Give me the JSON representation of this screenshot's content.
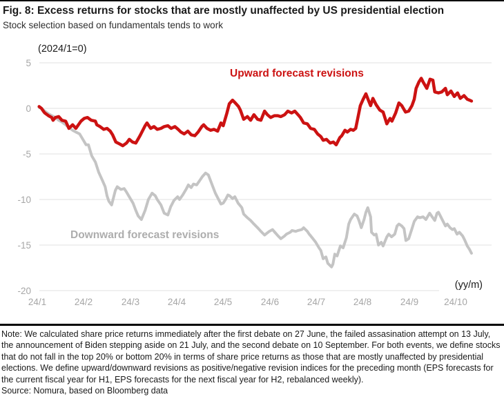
{
  "figure": {
    "title": "Fig. 8: Excess returns for stocks that are mostly unaffected by US presidential election",
    "subtitle": "Stock selection based on fundamentals tends to work"
  },
  "chart_data": {
    "type": "line",
    "title": "Excess returns for stocks that are mostly unaffected by US presidential election",
    "y_axis_unit_label": "(2024/1=0)",
    "x_axis_unit_label": "(yy/m)",
    "x_tick_labels": [
      "24/1",
      "24/2",
      "24/3",
      "24/4",
      "24/5",
      "24/6",
      "24/7",
      "24/8",
      "24/9",
      "24/10"
    ],
    "y_tick_labels": [
      "5",
      "0",
      "-5",
      "-10",
      "-15",
      "-20"
    ],
    "y_ticks": [
      5,
      0,
      -5,
      -10,
      -15,
      -20
    ],
    "ylim": [
      -20,
      5
    ],
    "xlim_months": [
      0,
      9.75
    ],
    "grid": true,
    "legend_position": "inline-annotations",
    "series": [
      {
        "name": "Downward forecast revisions",
        "color": "#c4c4c4",
        "label_color": "#adadad",
        "points": [
          [
            0.04,
            0.1
          ],
          [
            0.09,
            0.0
          ],
          [
            0.16,
            -0.3
          ],
          [
            0.24,
            -0.6
          ],
          [
            0.31,
            -0.8
          ],
          [
            0.39,
            -1.0
          ],
          [
            0.46,
            -1.3
          ],
          [
            0.53,
            -1.5
          ],
          [
            0.61,
            -1.8
          ],
          [
            0.68,
            -2.1
          ],
          [
            0.76,
            -2.4
          ],
          [
            0.83,
            -2.6
          ],
          [
            0.91,
            -2.8
          ],
          [
            0.98,
            -3.4
          ],
          [
            1.05,
            -4.0
          ],
          [
            1.1,
            -4.0
          ],
          [
            1.17,
            -5.2
          ],
          [
            1.25,
            -5.9
          ],
          [
            1.32,
            -7.0
          ],
          [
            1.4,
            -7.9
          ],
          [
            1.46,
            -8.6
          ],
          [
            1.5,
            -9.6
          ],
          [
            1.54,
            -10.2
          ],
          [
            1.6,
            -10.6
          ],
          [
            1.68,
            -9.0
          ],
          [
            1.72,
            -8.6
          ],
          [
            1.8,
            -8.9
          ],
          [
            1.87,
            -8.8
          ],
          [
            1.92,
            -9.2
          ],
          [
            1.99,
            -9.8
          ],
          [
            2.06,
            -10.4
          ],
          [
            2.12,
            -11.2
          ],
          [
            2.17,
            -11.8
          ],
          [
            2.24,
            -12.2
          ],
          [
            2.32,
            -11.2
          ],
          [
            2.39,
            -10.0
          ],
          [
            2.47,
            -9.3
          ],
          [
            2.54,
            -9.6
          ],
          [
            2.58,
            -10.0
          ],
          [
            2.66,
            -10.6
          ],
          [
            2.73,
            -11.5
          ],
          [
            2.81,
            -11.7
          ],
          [
            2.87,
            -10.8
          ],
          [
            2.94,
            -10.1
          ],
          [
            3.02,
            -9.7
          ],
          [
            3.06,
            -10.0
          ],
          [
            3.13,
            -9.5
          ],
          [
            3.21,
            -8.8
          ],
          [
            3.25,
            -8.4
          ],
          [
            3.31,
            -8.7
          ],
          [
            3.36,
            -8.3
          ],
          [
            3.43,
            -8.4
          ],
          [
            3.51,
            -7.8
          ],
          [
            3.55,
            -7.5
          ],
          [
            3.62,
            -7.1
          ],
          [
            3.68,
            -7.3
          ],
          [
            3.77,
            -8.5
          ],
          [
            3.83,
            -9.3
          ],
          [
            3.91,
            -10.1
          ],
          [
            3.95,
            -10.5
          ],
          [
            4.0,
            -10.4
          ],
          [
            4.05,
            -10.0
          ],
          [
            4.1,
            -9.5
          ],
          [
            4.14,
            -9.6
          ],
          [
            4.2,
            -9.9
          ],
          [
            4.25,
            -9.7
          ],
          [
            4.32,
            -10.4
          ],
          [
            4.4,
            -10.9
          ],
          [
            4.44,
            -11.6
          ],
          [
            4.52,
            -12.0
          ],
          [
            4.59,
            -12.3
          ],
          [
            4.66,
            -12.7
          ],
          [
            4.74,
            -13.1
          ],
          [
            4.81,
            -13.5
          ],
          [
            4.89,
            -13.9
          ],
          [
            4.99,
            -13.5
          ],
          [
            5.06,
            -13.3
          ],
          [
            5.11,
            -13.6
          ],
          [
            5.18,
            -14.0
          ],
          [
            5.24,
            -14.3
          ],
          [
            5.32,
            -14.0
          ],
          [
            5.36,
            -13.8
          ],
          [
            5.44,
            -13.6
          ],
          [
            5.48,
            -13.4
          ],
          [
            5.56,
            -13.5
          ],
          [
            5.61,
            -13.4
          ],
          [
            5.69,
            -13.3
          ],
          [
            5.73,
            -13.1
          ],
          [
            5.81,
            -13.5
          ],
          [
            5.85,
            -13.8
          ],
          [
            5.93,
            -14.3
          ],
          [
            5.99,
            -14.7
          ],
          [
            6.06,
            -15.3
          ],
          [
            6.1,
            -15.6
          ],
          [
            6.15,
            -16.5
          ],
          [
            6.21,
            -16.3
          ],
          [
            6.25,
            -17.0
          ],
          [
            6.33,
            -17.4
          ],
          [
            6.36,
            -17.1
          ],
          [
            6.4,
            -16.0
          ],
          [
            6.45,
            -16.2
          ],
          [
            6.52,
            -15.1
          ],
          [
            6.58,
            -15.3
          ],
          [
            6.65,
            -14.2
          ],
          [
            6.7,
            -12.7
          ],
          [
            6.74,
            -12.2
          ],
          [
            6.82,
            -11.6
          ],
          [
            6.88,
            -11.8
          ],
          [
            6.92,
            -12.3
          ],
          [
            6.97,
            -13.1
          ],
          [
            7.03,
            -12.2
          ],
          [
            7.07,
            -11.4
          ],
          [
            7.11,
            -10.9
          ],
          [
            7.17,
            -11.9
          ],
          [
            7.19,
            -13.6
          ],
          [
            7.25,
            -13.9
          ],
          [
            7.29,
            -13.8
          ],
          [
            7.34,
            -15.0
          ],
          [
            7.4,
            -14.7
          ],
          [
            7.44,
            -15.1
          ],
          [
            7.52,
            -14.1
          ],
          [
            7.56,
            -13.8
          ],
          [
            7.62,
            -14.1
          ],
          [
            7.69,
            -13.8
          ],
          [
            7.74,
            -12.9
          ],
          [
            7.78,
            -12.7
          ],
          [
            7.84,
            -12.9
          ],
          [
            7.89,
            -13.2
          ],
          [
            7.93,
            -14.5
          ],
          [
            7.99,
            -14.3
          ],
          [
            8.06,
            -13.2
          ],
          [
            8.11,
            -12.4
          ],
          [
            8.18,
            -11.9
          ],
          [
            8.23,
            -12.0
          ],
          [
            8.3,
            -11.9
          ],
          [
            8.36,
            -12.2
          ],
          [
            8.44,
            -11.5
          ],
          [
            8.48,
            -11.8
          ],
          [
            8.55,
            -12.3
          ],
          [
            8.6,
            -11.5
          ],
          [
            8.63,
            -11.4
          ],
          [
            8.67,
            -11.8
          ],
          [
            8.73,
            -12.4
          ],
          [
            8.78,
            -12.9
          ],
          [
            8.82,
            -12.7
          ],
          [
            8.88,
            -13.1
          ],
          [
            8.93,
            -13.3
          ],
          [
            8.97,
            -13.2
          ],
          [
            9.03,
            -13.8
          ],
          [
            9.08,
            -13.6
          ],
          [
            9.15,
            -14.0
          ],
          [
            9.19,
            -14.4
          ],
          [
            9.25,
            -15.1
          ],
          [
            9.3,
            -15.5
          ],
          [
            9.34,
            -15.9
          ]
        ]
      },
      {
        "name": "Upward forecast revisions",
        "color": "#cc1212",
        "label_color": "#cc1212",
        "points": [
          [
            0.04,
            0.2
          ],
          [
            0.09,
            0.0
          ],
          [
            0.13,
            -0.3
          ],
          [
            0.16,
            -0.5
          ],
          [
            0.24,
            -0.8
          ],
          [
            0.31,
            -1.0
          ],
          [
            0.34,
            -1.3
          ],
          [
            0.39,
            -1.0
          ],
          [
            0.46,
            -0.9
          ],
          [
            0.53,
            -1.3
          ],
          [
            0.61,
            -1.4
          ],
          [
            0.68,
            -2.2
          ],
          [
            0.76,
            -1.8
          ],
          [
            0.83,
            -2.2
          ],
          [
            0.94,
            -1.4
          ],
          [
            1.01,
            -1.1
          ],
          [
            1.08,
            -1.0
          ],
          [
            1.16,
            -1.3
          ],
          [
            1.25,
            -1.4
          ],
          [
            1.28,
            -1.8
          ],
          [
            1.35,
            -2.0
          ],
          [
            1.43,
            -2.3
          ],
          [
            1.5,
            -2.2
          ],
          [
            1.57,
            -2.5
          ],
          [
            1.62,
            -2.9
          ],
          [
            1.69,
            -3.7
          ],
          [
            1.77,
            -3.9
          ],
          [
            1.84,
            -4.1
          ],
          [
            1.92,
            -3.8
          ],
          [
            1.98,
            -3.4
          ],
          [
            2.05,
            -3.7
          ],
          [
            2.12,
            -3.8
          ],
          [
            2.21,
            -3.0
          ],
          [
            2.32,
            -1.9
          ],
          [
            2.36,
            -1.6
          ],
          [
            2.44,
            -2.2
          ],
          [
            2.51,
            -2.0
          ],
          [
            2.58,
            -2.3
          ],
          [
            2.66,
            -2.2
          ],
          [
            2.73,
            -2.0
          ],
          [
            2.81,
            -1.9
          ],
          [
            2.88,
            -2.2
          ],
          [
            2.96,
            -2.0
          ],
          [
            3.03,
            -2.3
          ],
          [
            3.09,
            -2.6
          ],
          [
            3.16,
            -2.8
          ],
          [
            3.24,
            -2.5
          ],
          [
            3.31,
            -2.9
          ],
          [
            3.39,
            -3.0
          ],
          [
            3.46,
            -2.6
          ],
          [
            3.54,
            -2.0
          ],
          [
            3.58,
            -1.8
          ],
          [
            3.65,
            -2.2
          ],
          [
            3.73,
            -2.4
          ],
          [
            3.8,
            -2.3
          ],
          [
            3.88,
            -2.5
          ],
          [
            3.95,
            -1.6
          ],
          [
            4.0,
            -1.9
          ],
          [
            4.08,
            -0.5
          ],
          [
            4.13,
            0.5
          ],
          [
            4.2,
            0.9
          ],
          [
            4.26,
            0.6
          ],
          [
            4.33,
            0.2
          ],
          [
            4.37,
            -0.2
          ],
          [
            4.44,
            -1.2
          ],
          [
            4.52,
            -0.9
          ],
          [
            4.59,
            -1.3
          ],
          [
            4.66,
            -0.7
          ],
          [
            4.74,
            -1.2
          ],
          [
            4.81,
            -1.3
          ],
          [
            4.89,
            -0.3
          ],
          [
            4.95,
            -0.7
          ],
          [
            5.02,
            -1.0
          ],
          [
            5.1,
            -0.8
          ],
          [
            5.17,
            -0.8
          ],
          [
            5.24,
            -0.9
          ],
          [
            5.32,
            -0.7
          ],
          [
            5.39,
            -0.3
          ],
          [
            5.47,
            -0.5
          ],
          [
            5.54,
            -0.3
          ],
          [
            5.61,
            -0.7
          ],
          [
            5.66,
            -1.0
          ],
          [
            5.73,
            -1.6
          ],
          [
            5.81,
            -1.7
          ],
          [
            5.88,
            -2.2
          ],
          [
            5.96,
            -2.3
          ],
          [
            6.03,
            -2.8
          ],
          [
            6.1,
            -3.1
          ],
          [
            6.15,
            -3.5
          ],
          [
            6.22,
            -3.4
          ],
          [
            6.3,
            -3.8
          ],
          [
            6.37,
            -3.7
          ],
          [
            6.43,
            -4.0
          ],
          [
            6.51,
            -3.2
          ],
          [
            6.55,
            -3.0
          ],
          [
            6.62,
            -2.4
          ],
          [
            6.67,
            -2.6
          ],
          [
            6.74,
            -2.3
          ],
          [
            6.8,
            -2.4
          ],
          [
            6.85,
            -2.2
          ],
          [
            6.89,
            -1.2
          ],
          [
            6.95,
            0.3
          ],
          [
            7.01,
            1.0
          ],
          [
            7.07,
            1.6
          ],
          [
            7.13,
            0.8
          ],
          [
            7.17,
            0.3
          ],
          [
            7.22,
            1.1
          ],
          [
            7.29,
            0.4
          ],
          [
            7.37,
            -0.2
          ],
          [
            7.44,
            -0.4
          ],
          [
            7.52,
            -1.7
          ],
          [
            7.59,
            -1.1
          ],
          [
            7.63,
            -1.4
          ],
          [
            7.71,
            -0.5
          ],
          [
            7.78,
            0.6
          ],
          [
            7.84,
            0.3
          ],
          [
            7.92,
            -0.4
          ],
          [
            7.99,
            -0.3
          ],
          [
            8.06,
            0.3
          ],
          [
            8.11,
            1.0
          ],
          [
            8.15,
            2.2
          ],
          [
            8.21,
            2.9
          ],
          [
            8.26,
            3.3
          ],
          [
            8.3,
            2.9
          ],
          [
            8.38,
            2.2
          ],
          [
            8.45,
            3.2
          ],
          [
            8.51,
            3.1
          ],
          [
            8.55,
            1.8
          ],
          [
            8.63,
            1.7
          ],
          [
            8.7,
            1.8
          ],
          [
            8.78,
            2.2
          ],
          [
            8.82,
            1.5
          ],
          [
            8.9,
            1.9
          ],
          [
            8.97,
            1.3
          ],
          [
            9.04,
            1.7
          ],
          [
            9.1,
            1.1
          ],
          [
            9.18,
            1.4
          ],
          [
            9.25,
            1.0
          ],
          [
            9.3,
            0.9
          ],
          [
            9.34,
            0.8
          ]
        ]
      }
    ]
  },
  "annotations": {
    "upward_label": "Upward forecast revisions",
    "downward_label": "Downward forecast revisions"
  },
  "footer": {
    "note": "Note: We calculated share price returns immediately after the first debate on 27 June, the failed assasination attempt on 13 July, the announcement of Biden stepping aside on 21 July, and the second debate on 10 September. For both events, we define stocks that do not fall in the top 20% or bottom 20% in terms of share price returns as those that are mostly unaffected by presidential elections. We define upward/downward revisions as positive/negative revision indices for the preceding month (EPS forecasts for the current fiscal year for H1, EPS forecasts for the next fiscal year for H2, rebalanced weekly).",
    "source": "Source: Nomura, based on Bloomberg data"
  },
  "colors": {
    "upward_line": "#cc1212",
    "downward_line": "#c4c4c4",
    "grid": "#ebebeb",
    "tick_label": "#a6a6a6",
    "text": "#1a1a1a"
  }
}
